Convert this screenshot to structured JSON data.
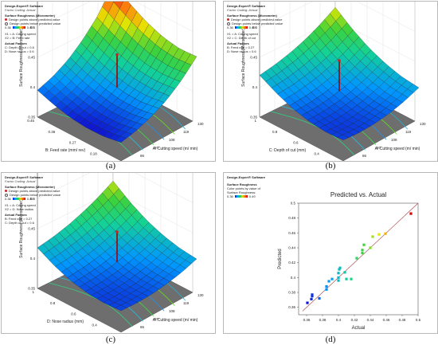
{
  "software_title": "Design-Expert® Software",
  "captions": [
    "(a)",
    "(b)",
    "(c)",
    "(d)"
  ],
  "panels": [
    {
      "coding": "Factor Coding: Actual",
      "response": "Surface Roughness (Micrometer)",
      "above": "Design points above predicted value",
      "below": "Design points below predicted value",
      "range_low": "0.36",
      "range_high": "0.49",
      "x1": "X1 = A: Cutting speed",
      "x2": "X2 = B: Feed rate",
      "actual_factors": "Actual Factors",
      "f1": "C: Depth of cut = 0.6",
      "f2": "D: Nose radius = 0.6",
      "zlabel": "Surface Roughness (Micrometer)",
      "xlabel": "A: Cutting speed (m/ min)",
      "ylabel": "B: Feed rate (mm/ rev)",
      "zticks": [
        "0.55",
        "0.5",
        "0.45",
        "0.4",
        "0.35"
      ],
      "xticks": [
        "75",
        "86",
        "97",
        "108",
        "119",
        "130"
      ],
      "yticks": [
        "0.09",
        "0.18",
        "0.27",
        "0.36",
        "0.45"
      ]
    },
    {
      "coding": "Factor Coding: Actual",
      "response": "Surface Roughness (Micrometer)",
      "above": "Design points above predicted value",
      "below": "Design points below predicted value",
      "range_low": "0.36",
      "range_high": "0.49",
      "x1": "X1 = A: Cutting speed",
      "x2": "X2 = C: Depth of cut",
      "actual_factors": "Actual Factors",
      "f1": "B: Feed rate = 0.27",
      "f2": "D: Nose radius = 0.6",
      "zlabel": "Surface Roughness (Micrometer)",
      "xlabel": "A: Cutting speed (m/ min)",
      "ylabel": "C: Depth of cut (mm)",
      "zticks": [
        "0.55",
        "0.5",
        "0.45",
        "0.4",
        "0.35"
      ],
      "xticks": [
        "75",
        "86",
        "97",
        "108",
        "119",
        "130"
      ],
      "yticks": [
        "0.2",
        "0.4",
        "0.6",
        "0.8",
        "1"
      ]
    },
    {
      "coding": "Factor Coding: Actual",
      "response": "Surface Roughness (Micrometer)",
      "above": "Design points above predicted value",
      "below": "Design points below predicted value",
      "range_low": "0.36",
      "range_high": "0.49",
      "x1": "X1 = A: Cutting speed",
      "x2": "X2 = D: Nose radius",
      "actual_factors": "Actual Factors",
      "f1": "B: Feed rate = 0.27",
      "f2": "C: Depth of cut = 0.6",
      "zlabel": "Surface Roughness (Micrometer)",
      "xlabel": "A: Cutting speed (m/ min)",
      "ylabel": "D: Nose radius (mm)",
      "zticks": [
        "0.55",
        "0.5",
        "0.45",
        "0.4",
        "0.35"
      ],
      "xticks": [
        "75",
        "86",
        "97",
        "108",
        "119",
        "130"
      ],
      "yticks": [
        "0.2",
        "0.4",
        "0.6",
        "0.8",
        "1"
      ]
    },
    {
      "response": "Surface Roughness",
      "color_by_1": "Color points by value of",
      "color_by_2": "Surface Roughness:",
      "range_low": "0.36",
      "range_high": "0.49"
    }
  ],
  "colors": {
    "low": "#1010d0",
    "high": "#d00000",
    "fit_line": "#b05050",
    "floor": "#6e6e6e"
  },
  "chart_data": [
    {
      "type": "surface3d",
      "title": "",
      "xlabel": "A: Cutting speed (m/ min)",
      "ylabel": "B: Feed rate (mm/ rev)",
      "zlabel": "Surface Roughness (Micrometer)",
      "xlim": [
        75,
        130
      ],
      "ylim": [
        0.09,
        0.45
      ],
      "zlim": [
        0.35,
        0.55
      ],
      "z_grid": [
        [
          0.395,
          0.385,
          0.378,
          0.375,
          0.376,
          0.381
        ],
        [
          0.405,
          0.394,
          0.386,
          0.382,
          0.383,
          0.388
        ],
        [
          0.42,
          0.408,
          0.399,
          0.394,
          0.394,
          0.399
        ],
        [
          0.442,
          0.428,
          0.417,
          0.411,
          0.41,
          0.414
        ],
        [
          0.47,
          0.455,
          0.442,
          0.434,
          0.432,
          0.435
        ],
        [
          0.51,
          0.492,
          0.476,
          0.465,
          0.46,
          0.462
        ]
      ],
      "design_point": {
        "a": 102.5,
        "b": 0.27,
        "z": 0.46
      }
    },
    {
      "type": "surface3d",
      "title": "",
      "xlabel": "A: Cutting speed (m/ min)",
      "ylabel": "C: Depth of cut (mm)",
      "zlabel": "Surface Roughness (Micrometer)",
      "xlim": [
        75,
        130
      ],
      "ylim": [
        0.2,
        1.0
      ],
      "zlim": [
        0.35,
        0.55
      ],
      "z_grid": [
        [
          0.42,
          0.405,
          0.393,
          0.386,
          0.383,
          0.385
        ],
        [
          0.425,
          0.408,
          0.395,
          0.387,
          0.383,
          0.384
        ],
        [
          0.432,
          0.414,
          0.4,
          0.391,
          0.386,
          0.386
        ],
        [
          0.442,
          0.423,
          0.408,
          0.398,
          0.392,
          0.391
        ],
        [
          0.455,
          0.435,
          0.419,
          0.408,
          0.401,
          0.399
        ],
        [
          0.471,
          0.45,
          0.433,
          0.421,
          0.413,
          0.41
        ]
      ],
      "design_point": {
        "a": 102.5,
        "c": 0.6,
        "z": 0.45
      }
    },
    {
      "type": "surface3d",
      "title": "",
      "xlabel": "A: Cutting speed (m/ min)",
      "ylabel": "D: Nose radius (mm)",
      "zlabel": "Surface Roughness (Micrometer)",
      "xlim": [
        75,
        130
      ],
      "ylim": [
        0.2,
        1.0
      ],
      "zlim": [
        0.35,
        0.55
      ],
      "z_grid": [
        [
          0.418,
          0.403,
          0.392,
          0.386,
          0.384,
          0.386
        ],
        [
          0.423,
          0.407,
          0.395,
          0.388,
          0.385,
          0.386
        ],
        [
          0.43,
          0.413,
          0.4,
          0.392,
          0.388,
          0.388
        ],
        [
          0.44,
          0.422,
          0.408,
          0.399,
          0.394,
          0.393
        ],
        [
          0.452,
          0.433,
          0.418,
          0.408,
          0.402,
          0.4
        ],
        [
          0.467,
          0.447,
          0.431,
          0.42,
          0.413,
          0.41
        ]
      ],
      "design_point": {
        "a": 102.5,
        "d": 0.6,
        "z": 0.45
      }
    },
    {
      "type": "scatter",
      "title": "Predicted vs. Actual",
      "xlabel": "Actual",
      "ylabel": "Predicted",
      "xlim": [
        0.35,
        0.5
      ],
      "ylim": [
        0.35,
        0.5
      ],
      "xticks": [
        "0.36",
        "0.38",
        "0.4",
        "0.42",
        "0.44",
        "0.46",
        "0.48",
        "0.5"
      ],
      "yticks": [
        "0.36",
        "0.38",
        "0.4",
        "0.42",
        "0.44",
        "0.46",
        "0.48",
        "0.5"
      ],
      "fit_line": [
        [
          0.355,
          0.355
        ],
        [
          0.5,
          0.5
        ]
      ],
      "points": [
        {
          "x": 0.361,
          "y": 0.366
        },
        {
          "x": 0.366,
          "y": 0.371
        },
        {
          "x": 0.367,
          "y": 0.375
        },
        {
          "x": 0.367,
          "y": 0.377
        },
        {
          "x": 0.376,
          "y": 0.372
        },
        {
          "x": 0.385,
          "y": 0.384
        },
        {
          "x": 0.385,
          "y": 0.388
        },
        {
          "x": 0.388,
          "y": 0.395
        },
        {
          "x": 0.392,
          "y": 0.398
        },
        {
          "x": 0.4,
          "y": 0.396
        },
        {
          "x": 0.4,
          "y": 0.4
        },
        {
          "x": 0.4,
          "y": 0.406
        },
        {
          "x": 0.401,
          "y": 0.411
        },
        {
          "x": 0.402,
          "y": 0.413
        },
        {
          "x": 0.408,
          "y": 0.407
        },
        {
          "x": 0.41,
          "y": 0.398
        },
        {
          "x": 0.416,
          "y": 0.398
        },
        {
          "x": 0.423,
          "y": 0.426
        },
        {
          "x": 0.43,
          "y": 0.433
        },
        {
          "x": 0.43,
          "y": 0.437
        },
        {
          "x": 0.432,
          "y": 0.444
        },
        {
          "x": 0.44,
          "y": 0.44
        },
        {
          "x": 0.443,
          "y": 0.455
        },
        {
          "x": 0.451,
          "y": 0.458
        },
        {
          "x": 0.459,
          "y": 0.459
        },
        {
          "x": 0.491,
          "y": 0.486
        }
      ]
    }
  ]
}
